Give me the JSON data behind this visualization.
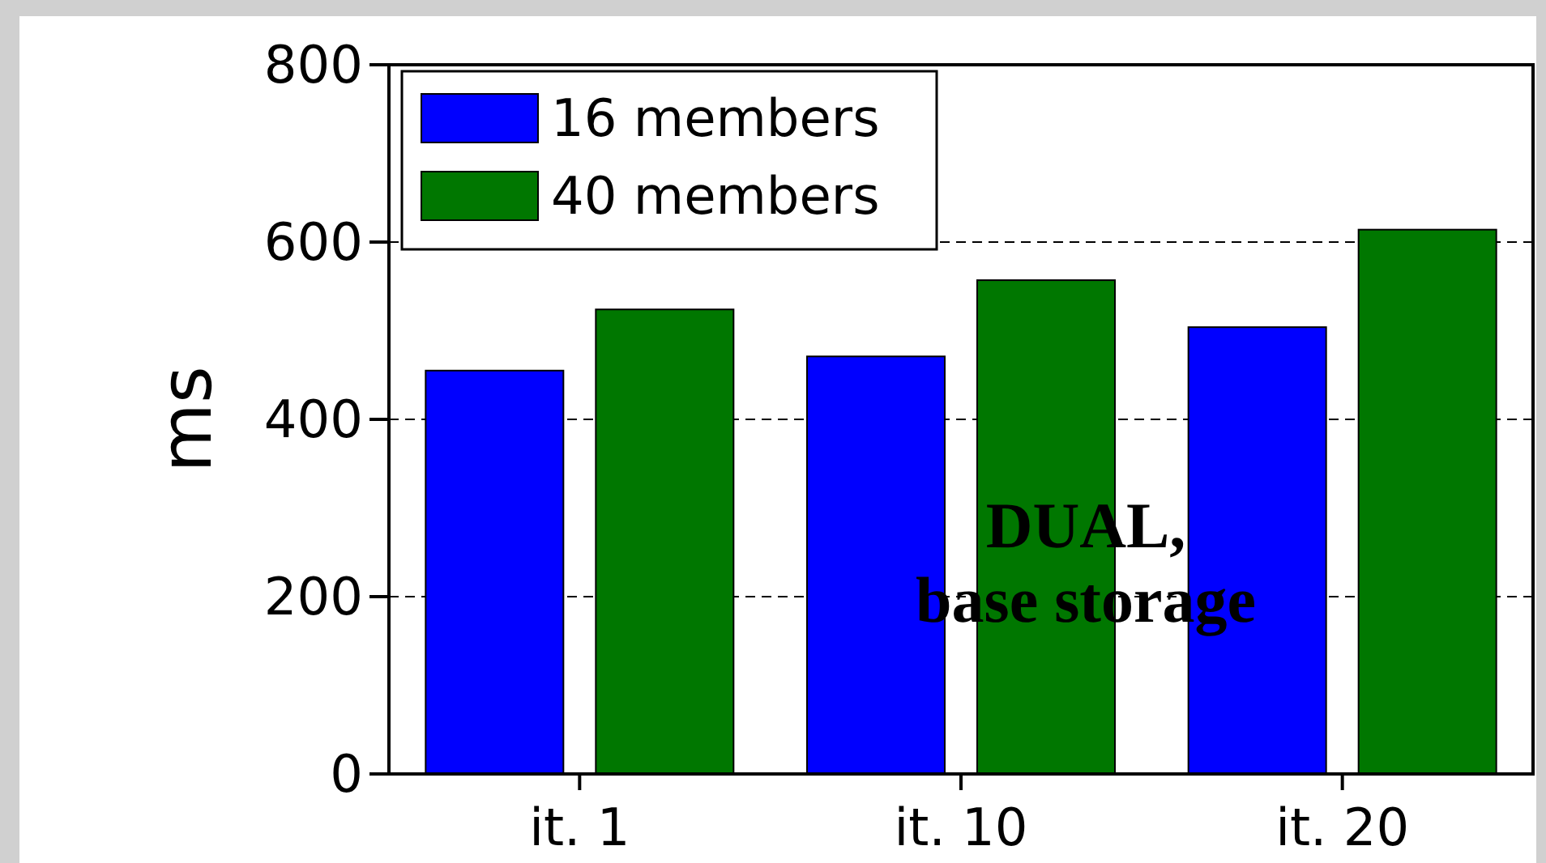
{
  "chart_data": {
    "type": "bar",
    "ylabel": "ms",
    "categories": [
      "it. 1",
      "it. 10",
      "it. 20"
    ],
    "series": [
      {
        "name": "16 members",
        "color": "#0000ff",
        "values": [
          455,
          471,
          504
        ]
      },
      {
        "name": "40 members",
        "color": "#007700",
        "values": [
          524,
          557,
          614
        ]
      }
    ],
    "ylim": [
      0,
      800
    ],
    "yticks": [
      0,
      200,
      400,
      600,
      800
    ],
    "grid": "y",
    "legend": "top left",
    "annotations": [
      "DUAL,\nbase storage"
    ]
  }
}
